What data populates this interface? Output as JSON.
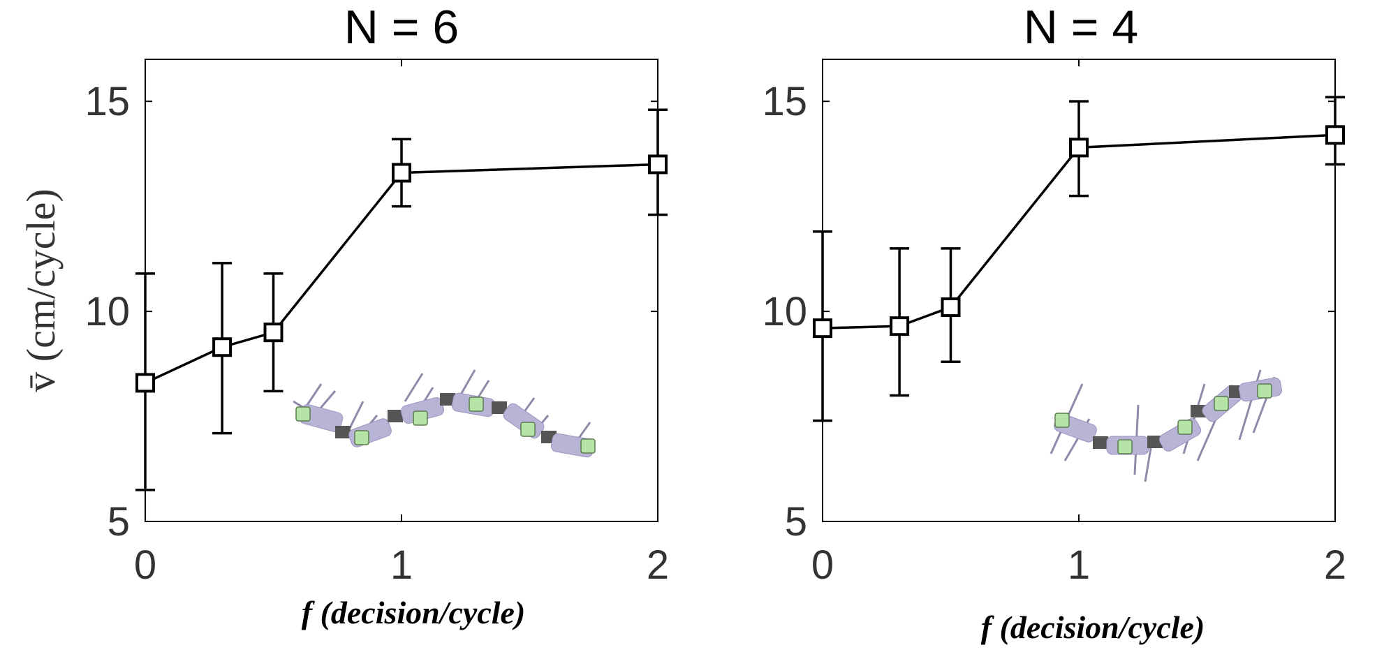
{
  "chart_data": [
    {
      "type": "line",
      "title": "N = 6",
      "xlabel": "f (decision/cycle)",
      "ylabel": "v̄ (cm/cycle)",
      "xlim": [
        0,
        2
      ],
      "ylim": [
        5,
        16
      ],
      "xticks": [
        "0",
        "1",
        "2"
      ],
      "yticks": [
        "5",
        "10",
        "15"
      ],
      "grid": false,
      "series": [
        {
          "x": [
            0,
            0.3,
            0.5,
            1,
            2
          ],
          "y": [
            8.3,
            9.15,
            9.5,
            13.3,
            13.5
          ],
          "err_low": [
            5.75,
            7.1,
            8.1,
            12.5,
            12.3
          ],
          "err_high": [
            10.9,
            11.15,
            10.9,
            14.1,
            14.8
          ],
          "marker": "square",
          "color": "#000000"
        }
      ],
      "inset": "robot-illustration"
    },
    {
      "type": "line",
      "title": "N = 4",
      "xlabel": "f (decision/cycle)",
      "ylabel": "",
      "xlim": [
        0,
        2
      ],
      "ylim": [
        5,
        16
      ],
      "xticks": [
        "0",
        "1",
        "2"
      ],
      "yticks": [
        "5",
        "10",
        "15"
      ],
      "grid": false,
      "series": [
        {
          "x": [
            0,
            0.3,
            0.5,
            1,
            2
          ],
          "y": [
            9.6,
            9.65,
            10.1,
            13.9,
            14.2
          ],
          "err_low": [
            7.4,
            8.0,
            8.8,
            12.75,
            13.5
          ],
          "err_high": [
            11.9,
            11.5,
            11.5,
            15.0,
            15.1
          ],
          "marker": "square",
          "color": "#000000"
        }
      ],
      "inset": "robot-illustration"
    }
  ]
}
